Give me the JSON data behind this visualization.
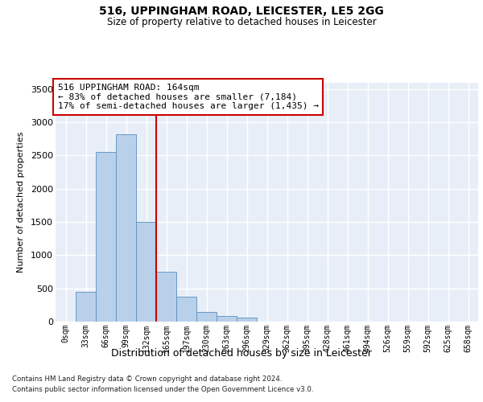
{
  "title1": "516, UPPINGHAM ROAD, LEICESTER, LE5 2GG",
  "title2": "Size of property relative to detached houses in Leicester",
  "xlabel": "Distribution of detached houses by size in Leicester",
  "ylabel": "Number of detached properties",
  "bar_color": "#b8d0ea",
  "bar_edge_color": "#5a8fc0",
  "vline_color": "#cc0000",
  "vline_x": 4.5,
  "annotation_line1": "516 UPPINGHAM ROAD: 164sqm",
  "annotation_line2": "← 83% of detached houses are smaller (7,184)",
  "annotation_line3": "17% of semi-detached houses are larger (1,435) →",
  "annotation_box_color": "#cc0000",
  "footer1": "Contains HM Land Registry data © Crown copyright and database right 2024.",
  "footer2": "Contains public sector information licensed under the Open Government Licence v3.0.",
  "categories": [
    "0sqm",
    "33sqm",
    "66sqm",
    "99sqm",
    "132sqm",
    "165sqm",
    "197sqm",
    "230sqm",
    "263sqm",
    "296sqm",
    "329sqm",
    "362sqm",
    "395sqm",
    "428sqm",
    "461sqm",
    "494sqm",
    "526sqm",
    "559sqm",
    "592sqm",
    "625sqm",
    "658sqm"
  ],
  "values": [
    5,
    450,
    2550,
    2820,
    1500,
    750,
    380,
    140,
    80,
    60,
    0,
    0,
    0,
    0,
    0,
    0,
    0,
    0,
    0,
    0,
    0
  ],
  "ylim": [
    0,
    3600
  ],
  "yticks": [
    0,
    500,
    1000,
    1500,
    2000,
    2500,
    3000,
    3500
  ],
  "plot_bg_color": "#e8eef8"
}
